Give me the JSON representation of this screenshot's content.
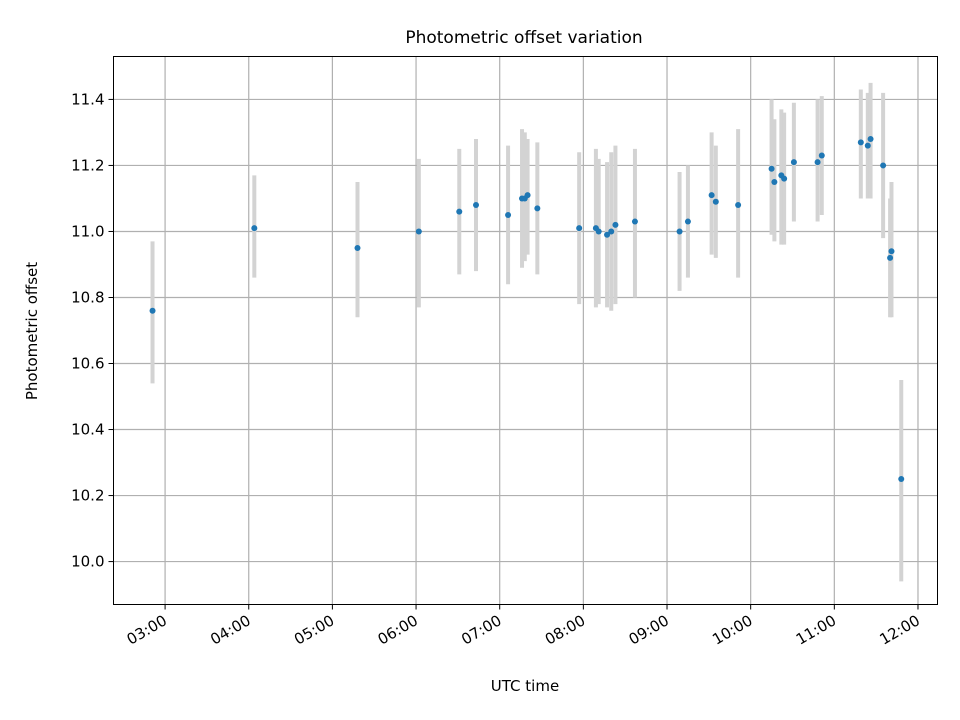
{
  "chart_data": {
    "type": "scatter",
    "title": "Photometric offset variation",
    "xlabel": "UTC time",
    "ylabel": "Photometric offset",
    "xlim": [
      "02:23",
      "12:14"
    ],
    "ylim": [
      9.87,
      11.53
    ],
    "x_ticks": [
      "03:00",
      "04:00",
      "05:00",
      "06:00",
      "07:00",
      "08:00",
      "09:00",
      "10:00",
      "11:00",
      "12:00"
    ],
    "y_ticks": [
      "10.0",
      "10.2",
      "10.4",
      "10.6",
      "10.8",
      "11.0",
      "11.2",
      "11.4"
    ],
    "grid": true,
    "colors": {
      "point": "#1f77b4",
      "errorbar": "#d3d3d3",
      "grid": "#b0b0b0"
    },
    "points": [
      {
        "x": "02:51",
        "y": 10.76,
        "ylow": 10.54,
        "yhigh": 10.97
      },
      {
        "x": "04:04",
        "y": 11.01,
        "ylow": 10.86,
        "yhigh": 11.17
      },
      {
        "x": "05:18",
        "y": 10.95,
        "ylow": 10.74,
        "yhigh": 11.15
      },
      {
        "x": "06:02",
        "y": 11.0,
        "ylow": 10.77,
        "yhigh": 11.22
      },
      {
        "x": "06:31",
        "y": 11.06,
        "ylow": 10.87,
        "yhigh": 11.25
      },
      {
        "x": "06:43",
        "y": 11.08,
        "ylow": 10.88,
        "yhigh": 11.28
      },
      {
        "x": "07:06",
        "y": 11.05,
        "ylow": 10.84,
        "yhigh": 11.26
      },
      {
        "x": "07:16",
        "y": 11.1,
        "ylow": 10.89,
        "yhigh": 11.31
      },
      {
        "x": "07:18",
        "y": 11.1,
        "ylow": 10.91,
        "yhigh": 11.3
      },
      {
        "x": "07:20",
        "y": 11.11,
        "ylow": 10.93,
        "yhigh": 11.28
      },
      {
        "x": "07:27",
        "y": 11.07,
        "ylow": 10.87,
        "yhigh": 11.27
      },
      {
        "x": "07:57",
        "y": 11.01,
        "ylow": 10.78,
        "yhigh": 11.24
      },
      {
        "x": "08:09",
        "y": 11.01,
        "ylow": 10.77,
        "yhigh": 11.25
      },
      {
        "x": "08:11",
        "y": 11.0,
        "ylow": 10.78,
        "yhigh": 11.22
      },
      {
        "x": "08:17",
        "y": 10.99,
        "ylow": 10.77,
        "yhigh": 11.21
      },
      {
        "x": "08:20",
        "y": 11.0,
        "ylow": 10.76,
        "yhigh": 11.24
      },
      {
        "x": "08:23",
        "y": 11.02,
        "ylow": 10.78,
        "yhigh": 11.26
      },
      {
        "x": "08:37",
        "y": 11.03,
        "ylow": 10.8,
        "yhigh": 11.25
      },
      {
        "x": "09:09",
        "y": 11.0,
        "ylow": 10.82,
        "yhigh": 11.18
      },
      {
        "x": "09:15",
        "y": 11.03,
        "ylow": 10.86,
        "yhigh": 11.2
      },
      {
        "x": "09:32",
        "y": 11.11,
        "ylow": 10.93,
        "yhigh": 11.3
      },
      {
        "x": "09:35",
        "y": 11.09,
        "ylow": 10.92,
        "yhigh": 11.26
      },
      {
        "x": "09:51",
        "y": 11.08,
        "ylow": 10.86,
        "yhigh": 11.31
      },
      {
        "x": "10:15",
        "y": 11.19,
        "ylow": 10.99,
        "yhigh": 11.4
      },
      {
        "x": "10:17",
        "y": 11.15,
        "ylow": 10.97,
        "yhigh": 11.34
      },
      {
        "x": "10:22",
        "y": 11.17,
        "ylow": 10.96,
        "yhigh": 11.37
      },
      {
        "x": "10:24",
        "y": 11.16,
        "ylow": 10.96,
        "yhigh": 11.36
      },
      {
        "x": "10:31",
        "y": 11.21,
        "ylow": 11.03,
        "yhigh": 11.39
      },
      {
        "x": "10:48",
        "y": 11.21,
        "ylow": 11.03,
        "yhigh": 11.4
      },
      {
        "x": "10:51",
        "y": 11.23,
        "ylow": 11.05,
        "yhigh": 11.41
      },
      {
        "x": "11:19",
        "y": 11.27,
        "ylow": 11.1,
        "yhigh": 11.43
      },
      {
        "x": "11:24",
        "y": 11.26,
        "ylow": 11.1,
        "yhigh": 11.42
      },
      {
        "x": "11:26",
        "y": 11.28,
        "ylow": 11.1,
        "yhigh": 11.45
      },
      {
        "x": "11:35",
        "y": 11.2,
        "ylow": 10.98,
        "yhigh": 11.42
      },
      {
        "x": "11:40",
        "y": 10.92,
        "ylow": 10.74,
        "yhigh": 11.1
      },
      {
        "x": "11:41",
        "y": 10.94,
        "ylow": 10.74,
        "yhigh": 11.15
      },
      {
        "x": "11:48",
        "y": 10.25,
        "ylow": 9.94,
        "yhigh": 10.55
      }
    ]
  }
}
